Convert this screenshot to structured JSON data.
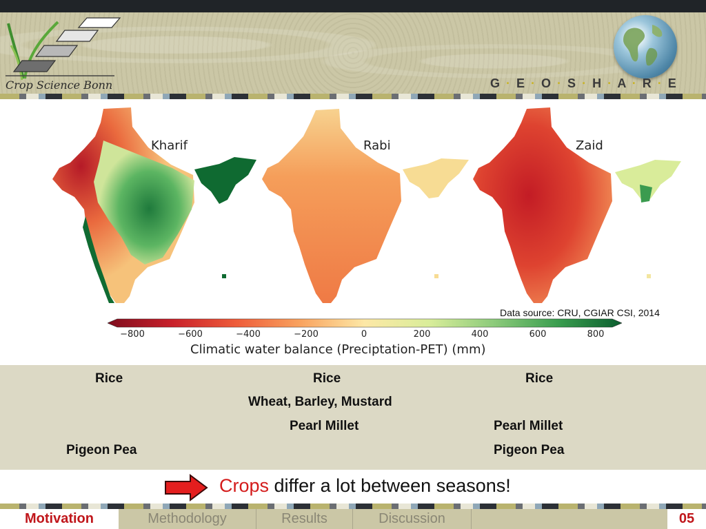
{
  "header": {
    "logo_text": "Crop Science Bonn",
    "brand_letters": [
      "G",
      "E",
      "O",
      "S",
      "H",
      "A",
      "R",
      "E"
    ]
  },
  "figure": {
    "seasons": [
      "Kharif",
      "Rabi",
      "Zaid"
    ],
    "data_source": "Data source: CRU, CGIAR CSI, 2014",
    "colorbar": {
      "title": "Climatic water balance (Preciptation-PET) (mm)",
      "ticks": [
        "−800",
        "−600",
        "−400",
        "−200",
        "0",
        "200",
        "400",
        "600",
        "800"
      ],
      "colors": [
        "#7f0d1e",
        "#c8202a",
        "#ee5c3a",
        "#f9a35f",
        "#fde8a6",
        "#d9ed9a",
        "#8dcb7b",
        "#3a9e4f",
        "#0b5e2f"
      ]
    }
  },
  "crops": {
    "kharif": {
      "row1": "Rice",
      "row4": "Pigeon Pea"
    },
    "rabi": {
      "row1": "Rice",
      "row2": "Wheat, Barley, Mustard",
      "row3": "Pearl Millet"
    },
    "zaid": {
      "row1": "Rice",
      "row3": "Pearl Millet",
      "row4": "Pigeon Pea"
    }
  },
  "message": {
    "highlight": "Crops",
    "rest": " differ a lot between seasons!"
  },
  "footer": {
    "nav": [
      "Motivation",
      "Methodology",
      "Results",
      "Discussion"
    ],
    "active": "Motivation",
    "page": "05"
  },
  "colors": {
    "accent_red": "#c0161b",
    "crop_bg": "#dcd9c5"
  }
}
